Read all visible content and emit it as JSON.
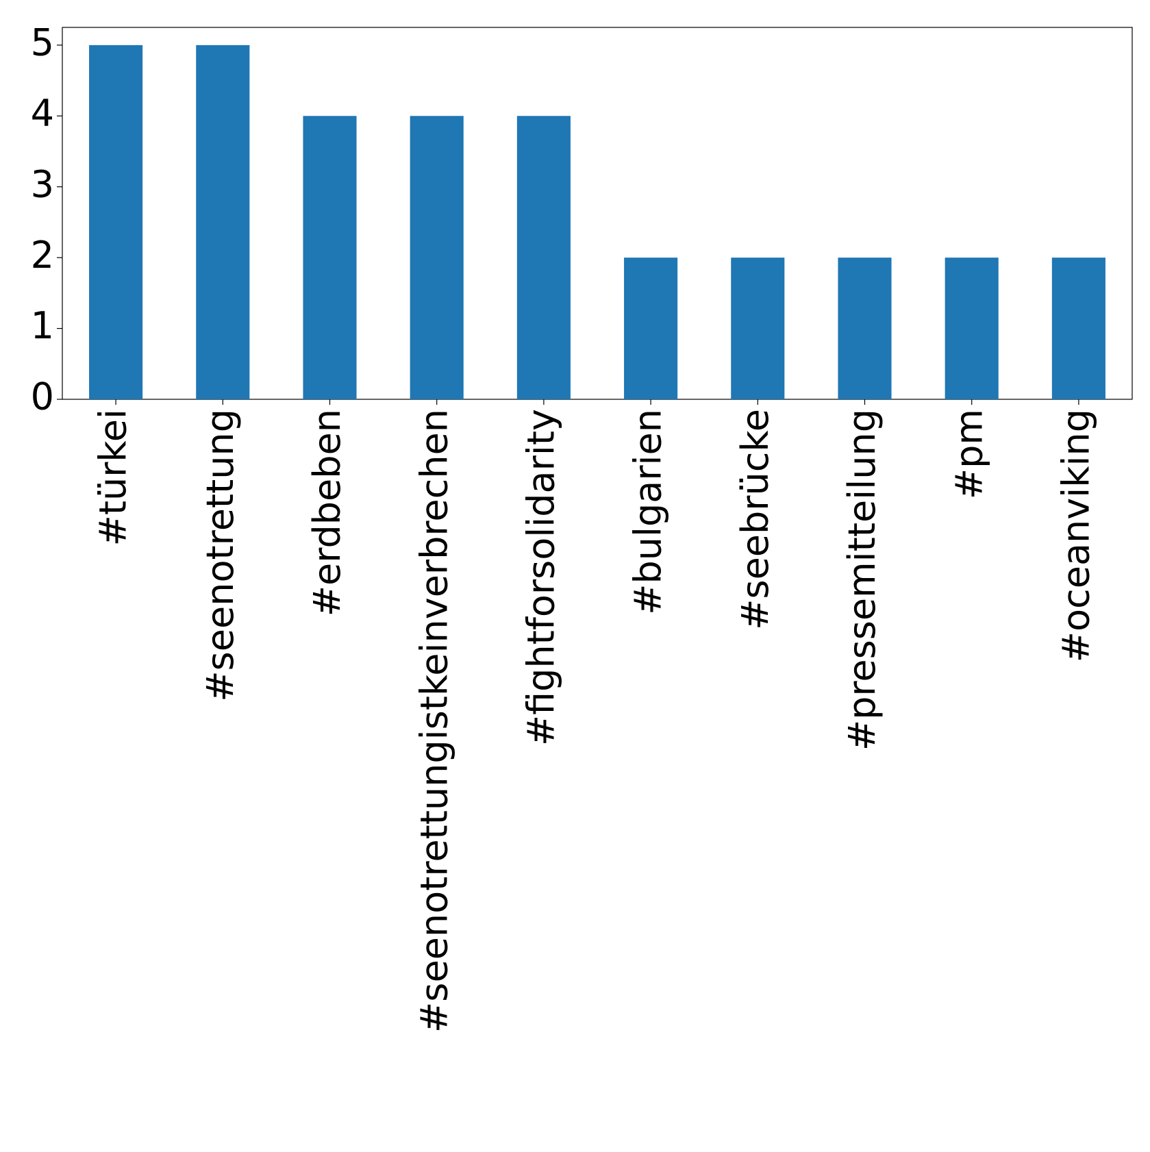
{
  "chart_data": {
    "type": "bar",
    "categories": [
      "#türkei",
      "#seenotrettung",
      "#erdbeben",
      "#seenotrettungistkeinverbrechen",
      "#fightforsolidarity",
      "#bulgarien",
      "#seebrücke",
      "#pressemitteilung",
      "#pm",
      "#oceanviking"
    ],
    "values": [
      5,
      5,
      4,
      4,
      4,
      2,
      2,
      2,
      2,
      2
    ],
    "color": "#1f77b4",
    "ylim": [
      0,
      5.25
    ],
    "yticks": [
      0,
      1,
      2,
      3,
      4,
      5
    ],
    "grid": false
  }
}
